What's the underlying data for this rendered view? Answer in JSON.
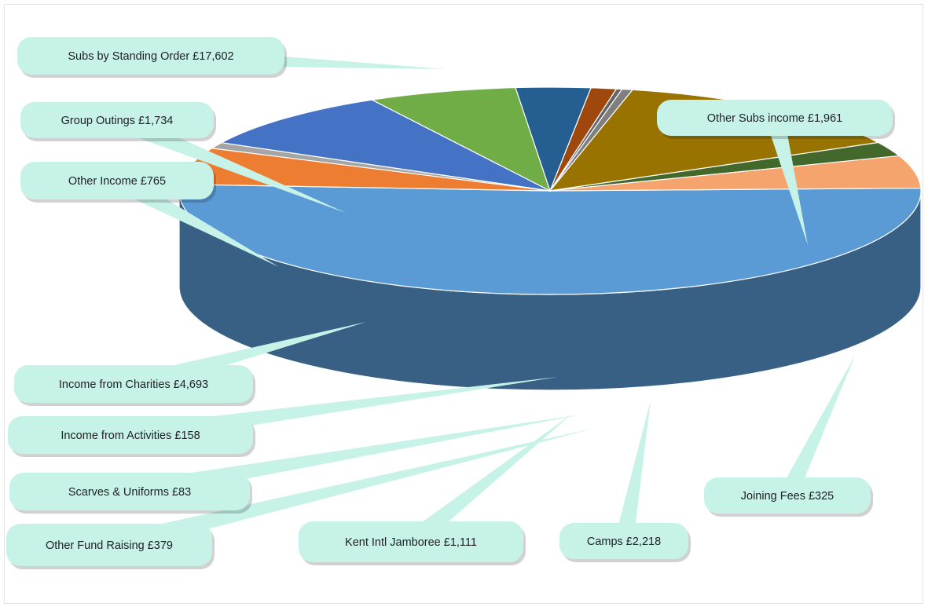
{
  "chart_data": {
    "type": "pie",
    "style": "3d-pie-with-callouts",
    "slices": [
      {
        "label": "Subs by Standing Order",
        "value": 17602,
        "display": "Subs by Standing Order £17,602",
        "color": "#5b9bd5"
      },
      {
        "label": "Other Subs income",
        "value": 1961,
        "display": "Other Subs income   £1,961",
        "color": "#ed7d31"
      },
      {
        "label": "Joining Fees",
        "value": 325,
        "display": "Joining Fees £325",
        "color": "#a5a5a5"
      },
      {
        "label": "",
        "value": 3200,
        "display": "",
        "color": "#4472c4"
      },
      {
        "label": "Camps",
        "value": 2218,
        "display": "Camps £2,218",
        "color": "#70ad47"
      },
      {
        "label": "Kent Intl Jamboree",
        "value": 1111,
        "display": "Kent Intl Jamboree  £1,111",
        "color": "#255e91"
      },
      {
        "label": "Other Fund Raising",
        "value": 379,
        "display": "Other Fund Raising £379",
        "color": "#9e480e"
      },
      {
        "label": "Scarves & Uniforms",
        "value": 83,
        "display": "Scarves & Uniforms £83",
        "color": "#636363"
      },
      {
        "label": "Income from Activities",
        "value": 158,
        "display": "Income from Activities £158",
        "color": "#7f7f7f"
      },
      {
        "label": "Income from Charities",
        "value": 4693,
        "display": "Income from Charities £4,693",
        "color": "#997300"
      },
      {
        "label": "Other Income",
        "value": 765,
        "display": "Other Income  £765",
        "color": "#43682b"
      },
      {
        "label": "Group Outings",
        "value": 1734,
        "display": "Group Outings £1,734",
        "color": "#f4a46c"
      }
    ],
    "legend": "none",
    "data_labels": "callouts"
  }
}
